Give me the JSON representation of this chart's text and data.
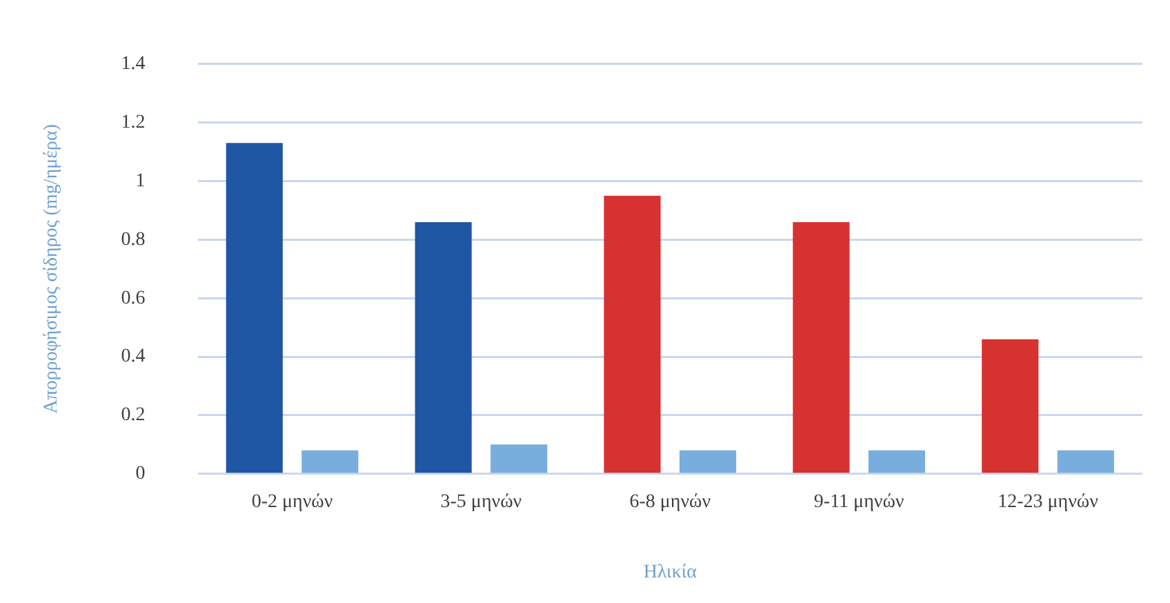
{
  "chart_data": {
    "type": "bar",
    "xlabel": "Ηλικία",
    "ylabel": "Απορροφήσιμος σίδηρος (mg/ημέρα)",
    "categories": [
      "0-2 μηνών",
      "3-5 μηνών",
      "6-8 μηνών",
      "9-11 μηνών",
      "12-23 μηνών"
    ],
    "series": [
      {
        "colors": [
          "#1f57a5",
          "#1f57a5",
          "#d63230",
          "#d63230",
          "#d63230"
        ],
        "values": [
          1.13,
          0.86,
          0.95,
          0.86,
          0.46
        ]
      },
      {
        "color": "#77aedd",
        "values": [
          0.08,
          0.1,
          0.08,
          0.08,
          0.08
        ]
      }
    ],
    "ylim": [
      0,
      1.4
    ],
    "yticks": [
      0,
      0.2,
      0.4,
      0.6,
      0.8,
      1,
      1.2,
      1.4
    ],
    "grid": "y",
    "legend": false
  }
}
